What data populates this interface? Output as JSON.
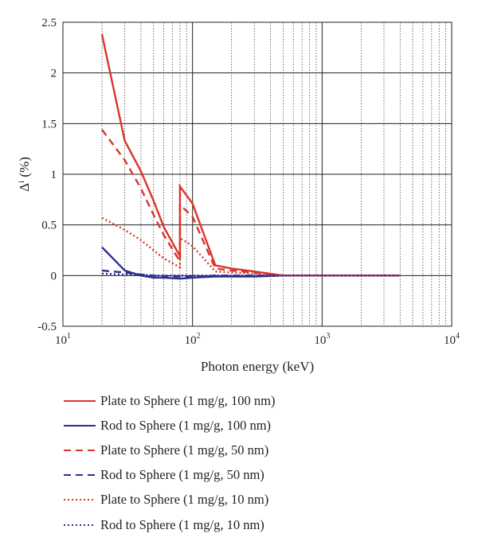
{
  "chart_data": {
    "type": "line",
    "title": "",
    "xlabel": "Photon energy (keV)",
    "ylabel_base": "Δ",
    "ylabel_sup": "i",
    "ylabel_unit": " (%)",
    "x_scale": "log",
    "xlim": [
      10,
      10000
    ],
    "ylim": [
      -0.5,
      2.5
    ],
    "grid": true,
    "legend_position": "below",
    "x_ticks": [
      {
        "base": "10",
        "exp": "1",
        "value": 10
      },
      {
        "base": "10",
        "exp": "2",
        "value": 100
      },
      {
        "base": "10",
        "exp": "3",
        "value": 1000
      },
      {
        "base": "10",
        "exp": "4",
        "value": 10000
      }
    ],
    "y_ticks": [
      {
        "label": "2.5",
        "value": 2.5
      },
      {
        "label": "2",
        "value": 2
      },
      {
        "label": "1.5",
        "value": 1.5
      },
      {
        "label": "1",
        "value": 1
      },
      {
        "label": "0.5",
        "value": 0.5
      },
      {
        "label": "0",
        "value": 0
      },
      {
        "label": "-0.5",
        "value": -0.5
      }
    ],
    "series": [
      {
        "name": "Plate to Sphere (1 mg/g, 100 nm)",
        "color": "#d9352a",
        "style": "solid",
        "x": [
          20,
          30,
          40,
          50,
          60,
          80,
          80,
          100,
          150,
          200,
          300,
          500,
          800,
          1000,
          2000,
          4000
        ],
        "y": [
          2.38,
          1.33,
          1.03,
          0.74,
          0.48,
          0.19,
          0.88,
          0.71,
          0.1,
          0.07,
          0.04,
          0.0,
          0.0,
          0.0,
          0.0,
          0.0
        ]
      },
      {
        "name": "Rod to Sphere (1 mg/g, 100 nm)",
        "color": "#2e2f8e",
        "style": "solid",
        "x": [
          20,
          30,
          40,
          50,
          60,
          80,
          100,
          150,
          200,
          300,
          500,
          1000,
          2000,
          4000
        ],
        "y": [
          0.28,
          0.05,
          0.0,
          -0.02,
          -0.02,
          -0.03,
          -0.02,
          -0.01,
          -0.01,
          -0.01,
          0.0,
          0.0,
          0.0,
          0.0
        ]
      },
      {
        "name": "Plate to Sphere (1 mg/g, 50 nm)",
        "color": "#d9352a",
        "style": "dashed",
        "x": [
          20,
          30,
          40,
          50,
          60,
          80,
          80,
          100,
          150,
          200,
          300,
          500,
          1000,
          2000,
          4000
        ],
        "y": [
          1.44,
          1.14,
          0.86,
          0.6,
          0.4,
          0.14,
          0.7,
          0.58,
          0.07,
          0.05,
          0.03,
          0.0,
          0.0,
          0.0,
          0.0
        ]
      },
      {
        "name": "Rod to Sphere (1 mg/g, 50 nm)",
        "color": "#2e2f8e",
        "style": "dashed",
        "x": [
          20,
          30,
          40,
          50,
          80,
          100,
          150,
          200,
          500,
          1000,
          4000
        ],
        "y": [
          0.05,
          0.03,
          0.01,
          0.0,
          -0.01,
          -0.01,
          0.0,
          0.0,
          0.0,
          0.0,
          0.0
        ]
      },
      {
        "name": "Plate to Sphere (1 mg/g, 10 nm)",
        "color": "#d9352a",
        "style": "dotted",
        "x": [
          20,
          30,
          40,
          50,
          60,
          80,
          80,
          100,
          150,
          200,
          300,
          500,
          1000,
          4000
        ],
        "y": [
          0.57,
          0.45,
          0.35,
          0.25,
          0.17,
          0.08,
          0.37,
          0.29,
          0.04,
          0.03,
          0.02,
          0.0,
          0.0,
          0.0
        ]
      },
      {
        "name": "Rod to Sphere (1 mg/g, 10 nm)",
        "color": "#2e2f8e",
        "style": "dotted",
        "x": [
          20,
          30,
          40,
          50,
          80,
          100,
          200,
          500,
          1000,
          4000
        ],
        "y": [
          0.02,
          0.01,
          0.01,
          0.0,
          0.0,
          0.0,
          0.0,
          0.0,
          0.0,
          0.0
        ]
      }
    ]
  }
}
